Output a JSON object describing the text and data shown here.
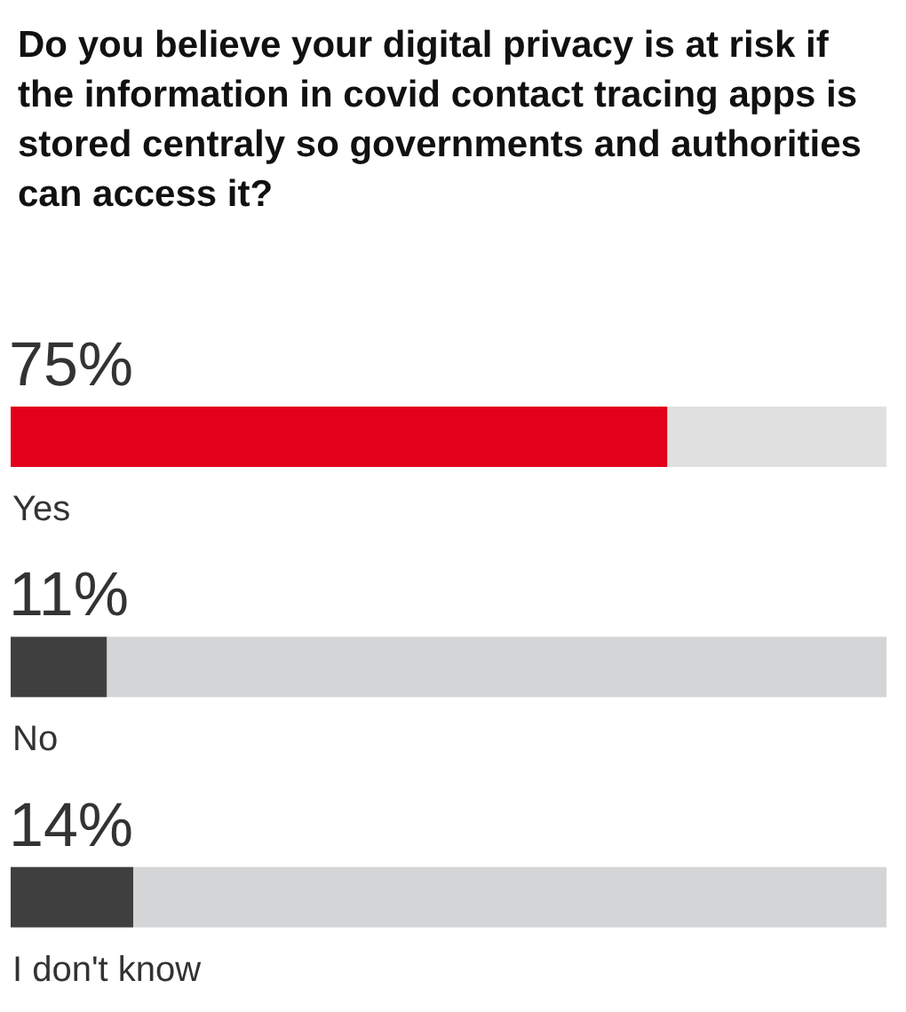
{
  "chart_data": {
    "type": "bar",
    "orientation": "horizontal",
    "stacked": true,
    "title": "Do you believe your digital privacy is at risk if the information in covid contact tracing apps is stored centraly so governments and authorities can access it?",
    "categories": [
      "Yes",
      "No",
      "I don't know"
    ],
    "series": [
      {
        "colors": [
          "#e2001a",
          "#3f3f3f",
          "#3f3f3f"
        ],
        "values": [
          75,
          11,
          14
        ],
        "value_labels": [
          "75%",
          "11%",
          "14%"
        ]
      },
      {
        "colors": [
          "#e0e0e0",
          "#d4d5d7",
          "#d4d5d7"
        ],
        "values": [
          25,
          89,
          86
        ]
      }
    ],
    "xlim": [
      0,
      100
    ],
    "tick_labels": "y"
  }
}
